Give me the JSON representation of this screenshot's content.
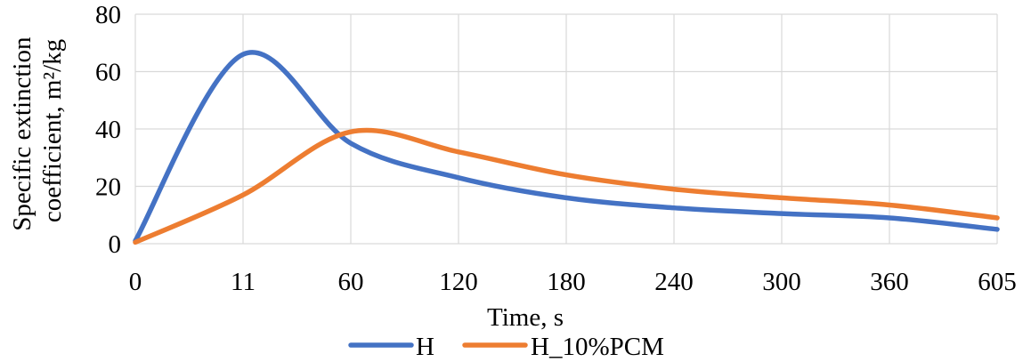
{
  "chart_data": {
    "type": "line",
    "title": "",
    "xlabel": "Time, s",
    "ylabel_lines": [
      "Specific extinction",
      "coefficient, m²/kg"
    ],
    "categories": [
      "0",
      "11",
      "60",
      "120",
      "180",
      "240",
      "300",
      "360",
      "605"
    ],
    "ylim": [
      0,
      80
    ],
    "yticks": [
      0,
      20,
      40,
      60,
      80
    ],
    "grid": true,
    "legend_position": "bottom",
    "series": [
      {
        "name": "H",
        "color": "#4472c4",
        "values": [
          1,
          66,
          35,
          23,
          16,
          12.5,
          10.5,
          9,
          5
        ]
      },
      {
        "name": "H_10%PCM",
        "color": "#ed7d31",
        "values": [
          0.5,
          17,
          39,
          32,
          24,
          19,
          16,
          13.5,
          9
        ]
      }
    ]
  }
}
